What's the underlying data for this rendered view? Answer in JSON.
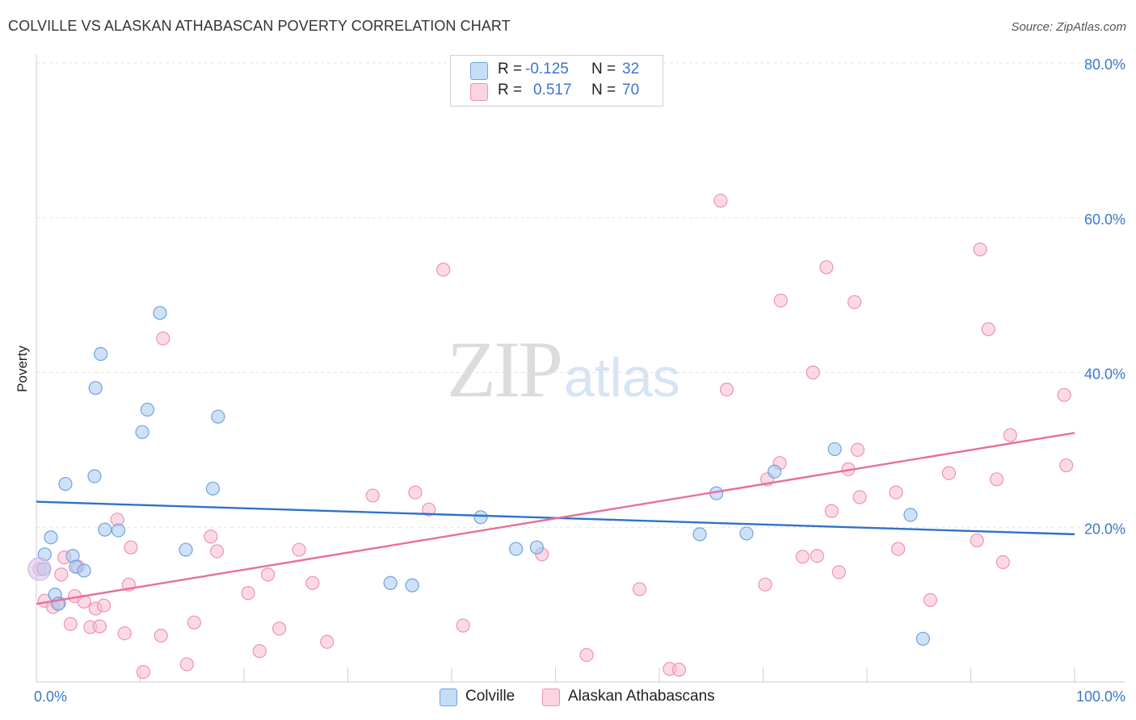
{
  "header": {
    "title": "COLVILLE VS ALASKAN ATHABASCAN POVERTY CORRELATION CHART",
    "source": "Source: ZipAtlas.com"
  },
  "watermark": {
    "zip": "ZIP",
    "atlas": "atlas"
  },
  "legend": {
    "rows": [
      {
        "r_label": "R =",
        "r_value": "-0.125",
        "n_label": "N =",
        "n_value": "32",
        "color": "#a8c8f0"
      },
      {
        "r_label": "R =",
        "r_value": "0.517",
        "n_label": "N =",
        "n_value": "70",
        "color": "#f7bcd0"
      }
    ]
  },
  "bottom_legend": {
    "colville": "Colville",
    "athabascan": "Alaskan Athabascans"
  },
  "colors": {
    "colville_fill": "#a8c8f0",
    "colville_stroke": "#6fa3e0",
    "colville_line": "#2f72c8",
    "athabascan_fill": "#f7bcd0",
    "athabascan_stroke": "#ef93b1",
    "athabascan_line": "#e6709a",
    "tick_text": "#3a78c9"
  },
  "chart_data": {
    "type": "scatter",
    "title": "COLVILLE VS ALASKAN ATHABASCAN POVERTY CORRELATION CHART",
    "xlabel": "",
    "ylabel": "Poverty",
    "xlim": [
      0,
      100
    ],
    "ylim": [
      0,
      80
    ],
    "x_tick_labels": [
      "0.0%",
      "100.0%"
    ],
    "y_ticks": [
      20,
      40,
      60,
      80
    ],
    "y_tick_labels": [
      "20.0%",
      "40.0%",
      "60.0%",
      "80.0%"
    ],
    "grid": true,
    "legend_position": "top-center",
    "series": [
      {
        "name": "Colville",
        "r": -0.125,
        "n": 32,
        "trend": {
          "x": [
            0,
            100
          ],
          "y": [
            23.3,
            19.1
          ]
        },
        "points": [
          [
            0.7,
            14.6
          ],
          [
            0.8,
            16.5
          ],
          [
            1.4,
            18.7
          ],
          [
            1.8,
            11.3
          ],
          [
            2.1,
            10.1
          ],
          [
            2.8,
            25.6
          ],
          [
            3.5,
            16.3
          ],
          [
            3.8,
            14.9
          ],
          [
            4.6,
            14.4
          ],
          [
            5.6,
            26.6
          ],
          [
            5.7,
            38.0
          ],
          [
            6.2,
            42.4
          ],
          [
            6.6,
            19.7
          ],
          [
            7.9,
            19.6
          ],
          [
            10.2,
            32.3
          ],
          [
            10.7,
            35.2
          ],
          [
            11.9,
            47.7
          ],
          [
            14.4,
            17.1
          ],
          [
            17.0,
            25.0
          ],
          [
            17.5,
            34.3
          ],
          [
            34.1,
            12.8
          ],
          [
            36.2,
            12.5
          ],
          [
            42.8,
            21.3
          ],
          [
            46.2,
            17.2
          ],
          [
            48.2,
            17.4
          ],
          [
            63.9,
            19.1
          ],
          [
            65.5,
            24.4
          ],
          [
            68.4,
            19.2
          ],
          [
            71.1,
            27.2
          ],
          [
            76.9,
            30.1
          ],
          [
            84.2,
            21.6
          ],
          [
            85.4,
            5.6
          ]
        ]
      },
      {
        "name": "Alaskan Athabascans",
        "r": 0.517,
        "n": 70,
        "trend": {
          "x": [
            0,
            100
          ],
          "y": [
            10.1,
            32.2
          ]
        },
        "points": [
          [
            0.3,
            14.6
          ],
          [
            0.8,
            10.5
          ],
          [
            1.6,
            9.7
          ],
          [
            2.2,
            10.2
          ],
          [
            2.4,
            13.9
          ],
          [
            2.7,
            16.1
          ],
          [
            3.3,
            7.5
          ],
          [
            3.7,
            11.1
          ],
          [
            4.0,
            14.9
          ],
          [
            4.6,
            10.4
          ],
          [
            5.2,
            7.1
          ],
          [
            5.7,
            9.5
          ],
          [
            6.1,
            7.2
          ],
          [
            6.5,
            9.9
          ],
          [
            7.8,
            21.0
          ],
          [
            8.5,
            6.3
          ],
          [
            8.9,
            12.6
          ],
          [
            9.1,
            17.4
          ],
          [
            10.3,
            1.3
          ],
          [
            12.0,
            6.0
          ],
          [
            12.2,
            44.4
          ],
          [
            14.5,
            2.3
          ],
          [
            15.2,
            7.7
          ],
          [
            16.8,
            18.8
          ],
          [
            17.4,
            16.9
          ],
          [
            20.4,
            11.5
          ],
          [
            21.5,
            4.0
          ],
          [
            22.3,
            13.9
          ],
          [
            23.4,
            6.9
          ],
          [
            25.3,
            17.1
          ],
          [
            26.6,
            12.8
          ],
          [
            28.0,
            5.2
          ],
          [
            32.4,
            24.1
          ],
          [
            36.5,
            24.5
          ],
          [
            37.8,
            22.3
          ],
          [
            39.2,
            53.3
          ],
          [
            41.1,
            7.3
          ],
          [
            48.7,
            16.5
          ],
          [
            53.0,
            3.5
          ],
          [
            58.1,
            12.0
          ],
          [
            61.0,
            1.7
          ],
          [
            61.9,
            1.6
          ],
          [
            65.9,
            62.2
          ],
          [
            66.5,
            37.8
          ],
          [
            70.2,
            12.6
          ],
          [
            70.4,
            26.2
          ],
          [
            71.6,
            28.3
          ],
          [
            71.7,
            49.3
          ],
          [
            73.8,
            16.2
          ],
          [
            74.8,
            40.0
          ],
          [
            75.2,
            16.3
          ],
          [
            76.1,
            53.6
          ],
          [
            76.6,
            22.1
          ],
          [
            77.3,
            14.2
          ],
          [
            78.2,
            27.5
          ],
          [
            78.8,
            49.1
          ],
          [
            79.1,
            30.0
          ],
          [
            79.3,
            23.9
          ],
          [
            82.8,
            24.5
          ],
          [
            83.0,
            17.2
          ],
          [
            86.1,
            10.6
          ],
          [
            87.9,
            27.0
          ],
          [
            90.6,
            18.3
          ],
          [
            90.9,
            55.9
          ],
          [
            91.7,
            45.6
          ],
          [
            92.5,
            26.2
          ],
          [
            93.1,
            15.5
          ],
          [
            93.8,
            31.9
          ],
          [
            99.0,
            37.1
          ],
          [
            99.2,
            28.0
          ]
        ]
      }
    ]
  }
}
